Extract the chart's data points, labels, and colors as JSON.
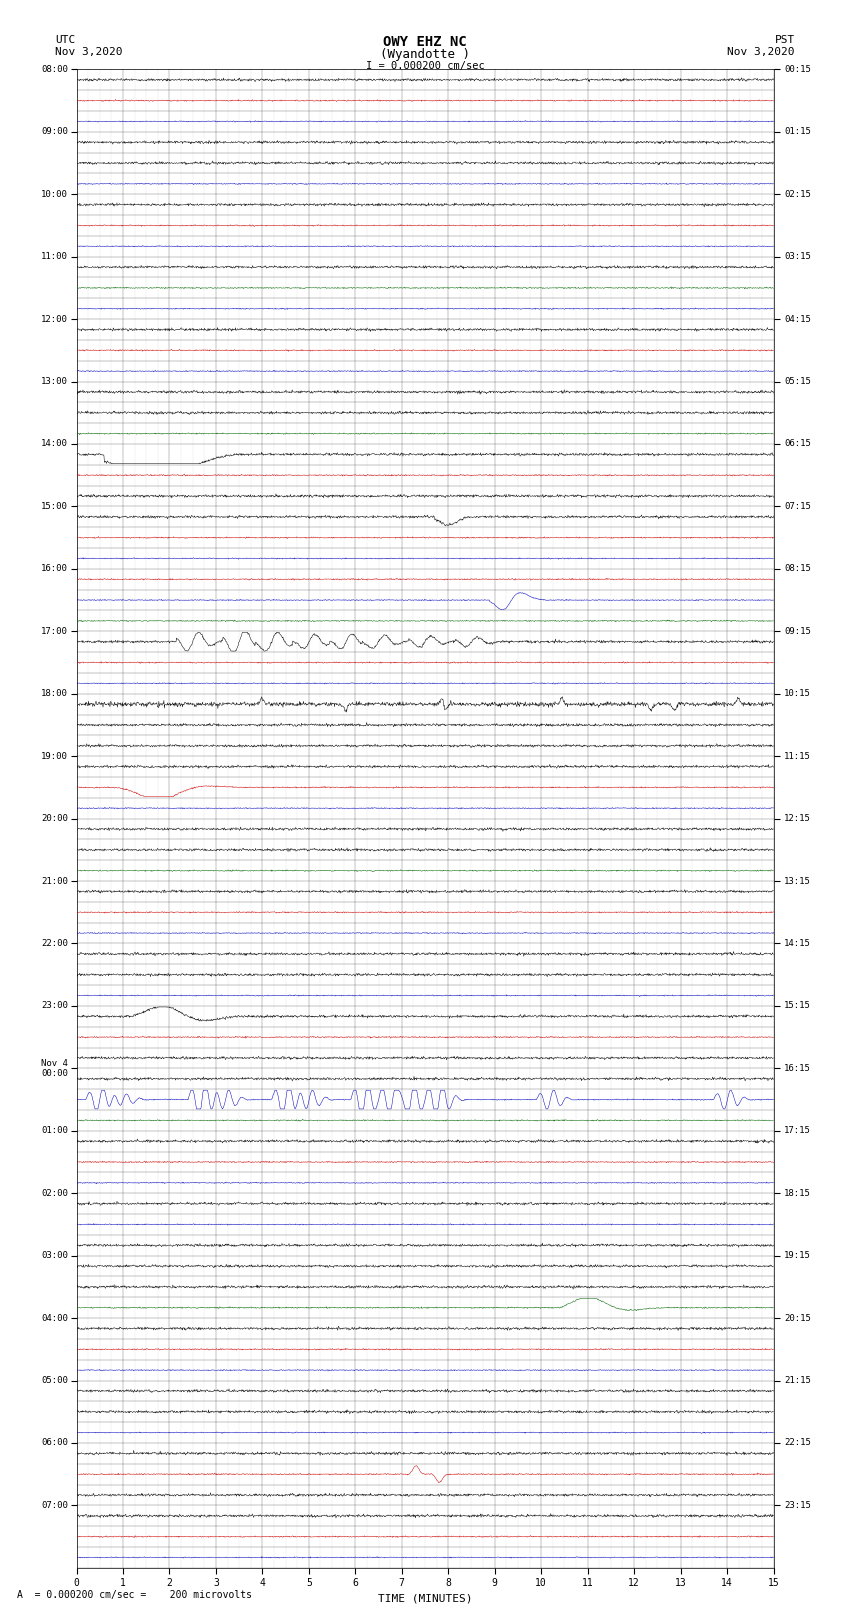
{
  "title_line1": "OWY EHZ NC",
  "title_line2": "(Wyandotte )",
  "scale_label": "I = 0.000200 cm/sec",
  "bottom_label": "A  = 0.000200 cm/sec =    200 microvolts",
  "xlabel": "TIME (MINUTES)",
  "xlim": [
    0,
    15
  ],
  "xticks": [
    0,
    1,
    2,
    3,
    4,
    5,
    6,
    7,
    8,
    9,
    10,
    11,
    12,
    13,
    14,
    15
  ],
  "bg_color": "#ffffff",
  "grid_color": "#555555",
  "minor_grid_color": "#aaaaaa",
  "trace_color_black": "#000000",
  "trace_color_red": "#cc0000",
  "trace_color_blue": "#0000bb",
  "trace_color_green": "#006600",
  "utc_times": [
    "08:00",
    "09:00",
    "10:00",
    "11:00",
    "12:00",
    "13:00",
    "14:00",
    "15:00",
    "16:00",
    "17:00",
    "18:00",
    "19:00",
    "20:00",
    "21:00",
    "22:00",
    "23:00",
    "Nov 4\n00:00",
    "01:00",
    "02:00",
    "03:00",
    "04:00",
    "05:00",
    "06:00",
    "07:00"
  ],
  "pst_times": [
    "00:15",
    "01:15",
    "02:15",
    "03:15",
    "04:15",
    "05:15",
    "06:15",
    "07:15",
    "08:15",
    "09:15",
    "10:15",
    "11:15",
    "12:15",
    "13:15",
    "14:15",
    "15:15",
    "16:15",
    "17:15",
    "18:15",
    "19:15",
    "20:15",
    "21:15",
    "22:15",
    "23:15"
  ],
  "num_hours": 24,
  "traces_per_hour": 3,
  "noise_amp": 0.03,
  "trace_colors_pattern": [
    [
      "black",
      "red",
      "blue"
    ],
    [
      "black",
      "black",
      "blue"
    ],
    [
      "black",
      "red",
      "blue"
    ],
    [
      "black",
      "green",
      "blue"
    ],
    [
      "black",
      "red",
      "blue"
    ],
    [
      "black",
      "black",
      "green"
    ],
    [
      "black",
      "red",
      "black"
    ],
    [
      "black",
      "red",
      "blue"
    ],
    [
      "red",
      "blue",
      "green"
    ],
    [
      "black",
      "red",
      "blue"
    ],
    [
      "black",
      "black",
      "black"
    ],
    [
      "black",
      "red",
      "blue"
    ],
    [
      "black",
      "black",
      "green"
    ],
    [
      "black",
      "red",
      "blue"
    ],
    [
      "black",
      "black",
      "blue"
    ],
    [
      "black",
      "red",
      "black"
    ],
    [
      "black",
      "blue",
      "green"
    ],
    [
      "black",
      "red",
      "blue"
    ],
    [
      "black",
      "blue",
      "black"
    ],
    [
      "black",
      "black",
      "green"
    ],
    [
      "black",
      "red",
      "blue"
    ],
    [
      "black",
      "black",
      "blue"
    ],
    [
      "black",
      "red",
      "black"
    ],
    [
      "black",
      "red",
      "blue"
    ]
  ],
  "colored_line_amps": {
    "red": 0.0,
    "blue": 0.0,
    "green": 0.0,
    "black": 0.0
  }
}
